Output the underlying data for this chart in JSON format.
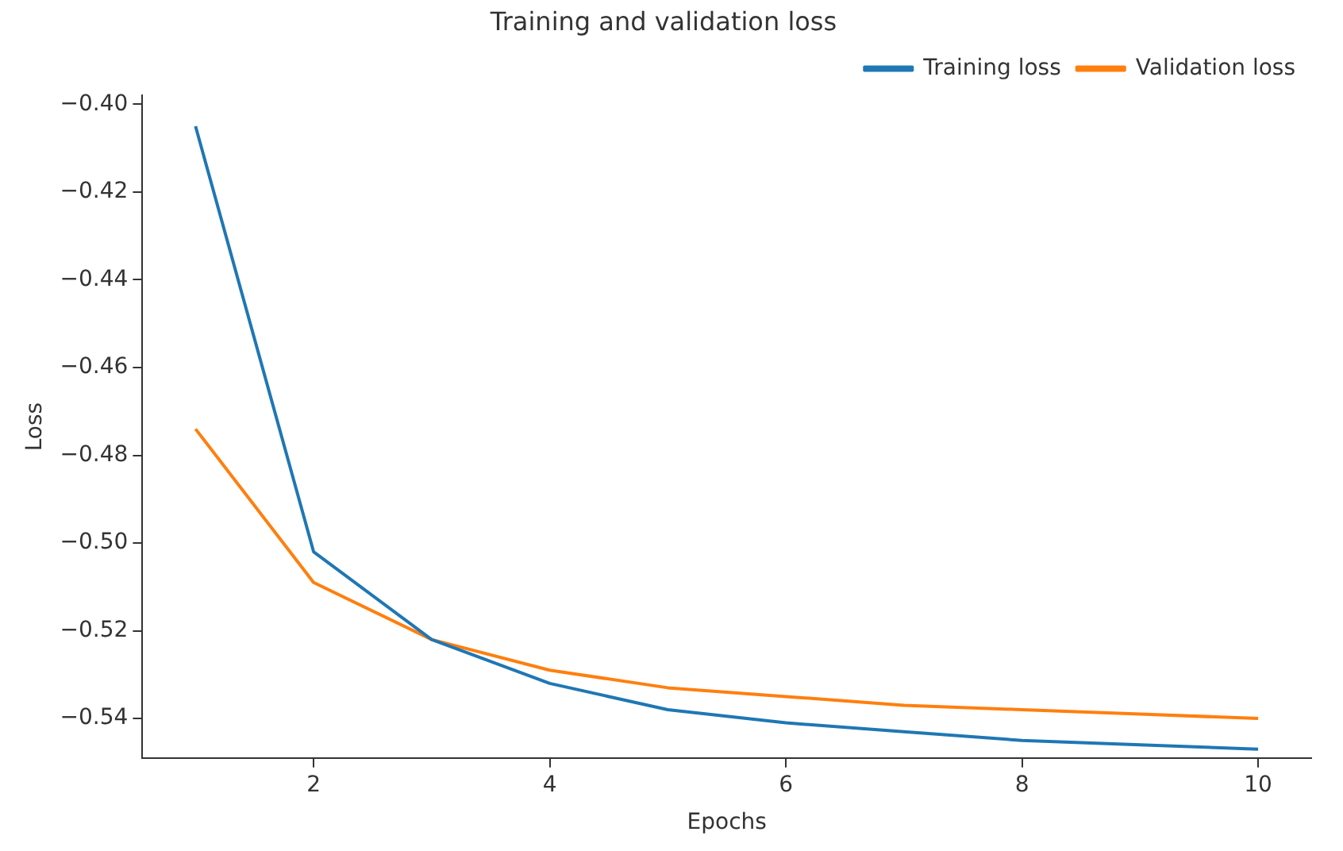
{
  "chart_data": {
    "type": "line",
    "title": "Training and validation loss",
    "xlabel": "Epochs",
    "ylabel": "Loss",
    "x": [
      1,
      2,
      3,
      4,
      5,
      6,
      7,
      8,
      9,
      10
    ],
    "series": [
      {
        "name": "Training loss",
        "color": "#1f77b4",
        "values": [
          -0.405,
          -0.502,
          -0.522,
          -0.532,
          -0.538,
          -0.541,
          -0.543,
          -0.545,
          -0.546,
          -0.547
        ]
      },
      {
        "name": "Validation loss",
        "color": "#ff7f0e",
        "values": [
          -0.474,
          -0.509,
          -0.522,
          -0.529,
          -0.533,
          -0.535,
          -0.537,
          -0.538,
          -0.539,
          -0.54
        ]
      }
    ],
    "xlim": [
      0.55,
      10.45
    ],
    "xticks": [
      2,
      4,
      6,
      8,
      10
    ],
    "ylim": [
      -0.549,
      -0.398
    ],
    "yticks": [
      {
        "value": -0.54,
        "label": "−0.54"
      },
      {
        "value": -0.52,
        "label": "−0.52"
      },
      {
        "value": -0.5,
        "label": "−0.50"
      },
      {
        "value": -0.48,
        "label": "−0.48"
      },
      {
        "value": -0.46,
        "label": "−0.46"
      },
      {
        "value": -0.44,
        "label": "−0.44"
      },
      {
        "value": -0.42,
        "label": "−0.42"
      },
      {
        "value": -0.4,
        "label": "−0.40"
      }
    ],
    "grid": false,
    "legend": "top right",
    "marker": "none",
    "line_style": "solid"
  }
}
